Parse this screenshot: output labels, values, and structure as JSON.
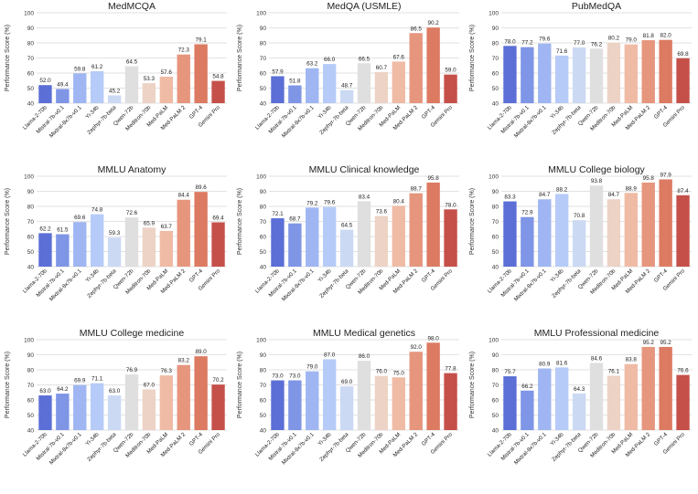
{
  "figure": {
    "ylabel": "Performance Score (%)",
    "categories": [
      "Llama-2-70b",
      "Mistral-7b-v0.1",
      "Mixtral-8x7b-v0.1",
      "Yi-34b",
      "Zephyr-7b-beta",
      "Qwen-72b",
      "Meditron-70b",
      "Med-PaLM",
      "Med-PaLM 2",
      "GPT-4",
      "Gemini Pro"
    ],
    "colors": [
      "#5b6fd6",
      "#7f95e6",
      "#9fb6f2",
      "#b6cbf7",
      "#cbd9f3",
      "#dfdfdf",
      "#ecd3c6",
      "#efbba5",
      "#e5967d",
      "#dc7a62",
      "#c5504a"
    ]
  },
  "chart_data": [
    {
      "type": "bar",
      "title": "MedMCQA",
      "ylabel": "Performance Score (%)",
      "ylim": [
        40,
        100
      ],
      "yticks": [
        40,
        50,
        60,
        70,
        80,
        90,
        100
      ],
      "grid": true,
      "categories": [
        "Llama-2-70b",
        "Mistral-7b-v0.1",
        "Mixtral-8x7b-v0.1",
        "Yi-34b",
        "Zephyr-7b-beta",
        "Qwen-72b",
        "Meditron-70b",
        "Med-PaLM",
        "Med-PaLM 2",
        "GPT-4",
        "Gemini Pro"
      ],
      "values": [
        52.0,
        49.4,
        59.8,
        61.2,
        45.2,
        64.5,
        53.3,
        57.6,
        72.3,
        79.1,
        54.8
      ],
      "labels": [
        "52.0",
        "49.4",
        "59.8",
        "61.2",
        "45.2",
        "64.5",
        "53.3",
        "57.6",
        "72.3",
        "79.1",
        "54.8"
      ]
    },
    {
      "type": "bar",
      "title": "MedQA (USMLE)",
      "ylabel": "Performance Score (%)",
      "ylim": [
        40,
        100
      ],
      "yticks": [
        40,
        50,
        60,
        70,
        80,
        90,
        100
      ],
      "grid": true,
      "categories": [
        "Llama-2-70b",
        "Mistral-7b-v0.1",
        "Mixtral-8x7b-v0.1",
        "Yi-34b",
        "Zephyr-7b-beta",
        "Qwen-72b",
        "Meditron-70b",
        "Med-PaLM",
        "Med-PaLM 2",
        "GPT-4",
        "Gemini Pro"
      ],
      "values": [
        57.9,
        51.8,
        63.2,
        66.0,
        48.7,
        66.5,
        60.7,
        67.6,
        86.5,
        90.2,
        59.0
      ],
      "labels": [
        "57.9",
        "51.8",
        "63.2",
        "66.0",
        "48.7",
        "66.5",
        "60.7",
        "67.6",
        "86.5",
        "90.2",
        "59.0"
      ]
    },
    {
      "type": "bar",
      "title": "PubMedQA",
      "ylabel": "Performance Score (%)",
      "ylim": [
        40,
        100
      ],
      "yticks": [
        40,
        50,
        60,
        70,
        80,
        90,
        100
      ],
      "grid": true,
      "categories": [
        "Llama-2-70b",
        "Mistral-7b-v0.1",
        "Mixtral-8x7b-v0.1",
        "Yi-34b",
        "Zephyr-7b-beta",
        "Qwen-72b",
        "Meditron-70b",
        "Med-PaLM",
        "Med-PaLM 2",
        "GPT-4",
        "Gemini Pro"
      ],
      "values": [
        78.0,
        77.2,
        79.6,
        71.6,
        77.0,
        76.2,
        80.2,
        79.0,
        81.8,
        82.0,
        69.8
      ],
      "labels": [
        "78.0",
        "77.2",
        "79.6",
        "71.6",
        "77.0",
        "76.2",
        "80.2",
        "79.0",
        "81.8",
        "82.0",
        "69.8"
      ]
    },
    {
      "type": "bar",
      "title": "MMLU Anatomy",
      "ylabel": "Performance Score (%)",
      "ylim": [
        40,
        100
      ],
      "yticks": [
        40,
        50,
        60,
        70,
        80,
        90,
        100
      ],
      "grid": true,
      "categories": [
        "Llama-2-70b",
        "Mistral-7b-v0.1",
        "Mixtral-8x7b-v0.1",
        "Yi-34b",
        "Zephyr-7b-beta",
        "Qwen-72b",
        "Meditron-70b",
        "Med-PaLM",
        "Med-PaLM 2",
        "GPT-4",
        "Gemini Pro"
      ],
      "values": [
        62.2,
        61.5,
        69.6,
        74.8,
        59.3,
        72.6,
        65.9,
        63.7,
        84.4,
        89.6,
        69.4
      ],
      "labels": [
        "62.2",
        "61.5",
        "69.6",
        "74.8",
        "59.3",
        "72.6",
        "65.9",
        "63.7",
        "84.4",
        "89.6",
        "69.4"
      ]
    },
    {
      "type": "bar",
      "title": "MMLU Clinical knowledge",
      "ylabel": "Performance Score (%)",
      "ylim": [
        40,
        100
      ],
      "yticks": [
        40,
        50,
        60,
        70,
        80,
        90,
        100
      ],
      "grid": true,
      "categories": [
        "Llama-2-70b",
        "Mistral-7b-v0.1",
        "Mixtral-8x7b-v0.1",
        "Yi-34b",
        "Zephyr-7b-beta",
        "Qwen-72b",
        "Meditron-70b",
        "Med-PaLM",
        "Med-PaLM 2",
        "GPT-4",
        "Gemini Pro"
      ],
      "values": [
        72.1,
        68.7,
        79.2,
        79.6,
        64.5,
        83.4,
        73.6,
        80.4,
        88.7,
        95.8,
        78.0
      ],
      "labels": [
        "72.1",
        "68.7",
        "79.2",
        "79.6",
        "64.5",
        "83.4",
        "73.6",
        "80.4",
        "88.7",
        "95.8",
        "78.0"
      ]
    },
    {
      "type": "bar",
      "title": "MMLU College biology",
      "ylabel": "Performance Score (%)",
      "ylim": [
        40,
        100
      ],
      "yticks": [
        40,
        50,
        60,
        70,
        80,
        90,
        100
      ],
      "grid": true,
      "categories": [
        "Llama-2-70b",
        "Mistral-7b-v0.1",
        "Mixtral-8x7b-v0.1",
        "Yi-34b",
        "Zephyr-7b-beta",
        "Qwen-72b",
        "Meditron-70b",
        "Med-PaLM",
        "Med-PaLM 2",
        "GPT-4",
        "Gemini Pro"
      ],
      "values": [
        83.3,
        72.9,
        84.7,
        88.2,
        70.8,
        93.8,
        84.7,
        88.9,
        95.8,
        97.9,
        87.4
      ],
      "labels": [
        "83.3",
        "72.9",
        "84.7",
        "88.2",
        "70.8",
        "93.8",
        "84.7",
        "88.9",
        "95.8",
        "97.9",
        "87.4"
      ]
    },
    {
      "type": "bar",
      "title": "MMLU College medicine",
      "ylabel": "Performance Score (%)",
      "ylim": [
        40,
        100
      ],
      "yticks": [
        40,
        50,
        60,
        70,
        80,
        90,
        100
      ],
      "grid": true,
      "categories": [
        "Llama-2-70b",
        "Mistral-7b-v0.1",
        "Mixtral-8x7b-v0.1",
        "Yi-34b",
        "Zephyr-7b-beta",
        "Qwen-72b",
        "Meditron-70b",
        "Med-PaLM",
        "Med-PaLM 2",
        "GPT-4",
        "Gemini Pro"
      ],
      "values": [
        63.0,
        64.2,
        69.9,
        71.1,
        63.0,
        76.9,
        67.0,
        76.3,
        83.2,
        89.0,
        70.2
      ],
      "labels": [
        "63.0",
        "64.2",
        "69.9",
        "71.1",
        "63.0",
        "76.9",
        "67.0",
        "76.3",
        "83.2",
        "89.0",
        "70.2"
      ]
    },
    {
      "type": "bar",
      "title": "MMLU Medical genetics",
      "ylabel": "Performance Score (%)",
      "ylim": [
        40,
        100
      ],
      "yticks": [
        40,
        50,
        60,
        70,
        80,
        90,
        100
      ],
      "grid": true,
      "categories": [
        "Llama-2-70b",
        "Mistral-7b-v0.1",
        "Mixtral-8x7b-v0.1",
        "Yi-34b",
        "Zephyr-7b-beta",
        "Qwen-72b",
        "Meditron-70b",
        "Med-PaLM",
        "Med-PaLM 2",
        "GPT-4",
        "Gemini Pro"
      ],
      "values": [
        73.0,
        73.0,
        79.0,
        87.0,
        69.0,
        86.0,
        76.0,
        75.0,
        92.0,
        98.0,
        77.8
      ],
      "labels": [
        "73.0",
        "73.0",
        "79.0",
        "87.0",
        "69.0",
        "86.0",
        "76.0",
        "75.0",
        "92.0",
        "98.0",
        "77.8"
      ]
    },
    {
      "type": "bar",
      "title": "MMLU Professional medicine",
      "ylabel": "Performance Score (%)",
      "ylim": [
        40,
        100
      ],
      "yticks": [
        40,
        50,
        60,
        70,
        80,
        90,
        100
      ],
      "grid": true,
      "categories": [
        "Llama-2-70b",
        "Mistral-7b-v0.1",
        "Mixtral-8x7b-v0.1",
        "Yi-34b",
        "Zephyr-7b-beta",
        "Qwen-72b",
        "Meditron-70b",
        "Med-PaLM",
        "Med-PaLM 2",
        "GPT-4",
        "Gemini Pro"
      ],
      "values": [
        75.7,
        66.2,
        80.9,
        81.6,
        64.3,
        84.6,
        76.1,
        83.8,
        95.2,
        95.2,
        76.6
      ],
      "labels": [
        "75.7",
        "66.2",
        "80.9",
        "81.6",
        "64.3",
        "84.6",
        "76.1",
        "83.8",
        "95.2",
        "95.2",
        "76.6"
      ]
    }
  ]
}
